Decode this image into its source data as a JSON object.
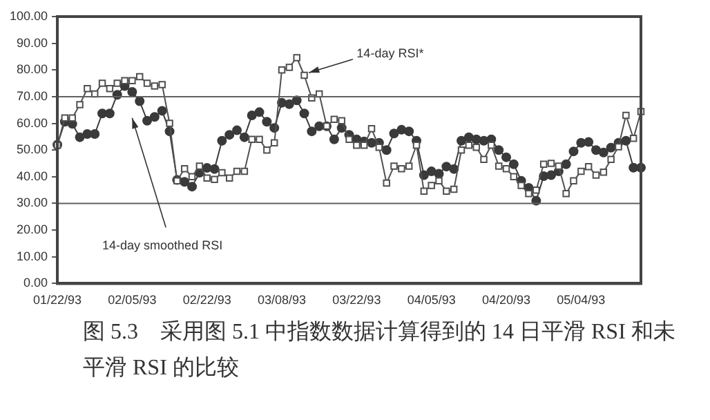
{
  "chart_data": {
    "type": "line",
    "categories": [
      "01/22/93",
      null,
      null,
      null,
      null,
      null,
      null,
      null,
      null,
      null,
      "02/05/93",
      null,
      null,
      null,
      null,
      null,
      null,
      null,
      null,
      null,
      "02/22/93",
      null,
      null,
      null,
      null,
      null,
      null,
      null,
      null,
      null,
      "03/08/93",
      null,
      null,
      null,
      null,
      null,
      null,
      null,
      null,
      null,
      "03/22/93",
      null,
      null,
      null,
      null,
      null,
      null,
      null,
      null,
      null,
      "04/05/93",
      null,
      null,
      null,
      null,
      null,
      null,
      null,
      null,
      null,
      "04/20/93",
      null,
      null,
      null,
      null,
      null,
      null,
      null,
      null,
      null,
      "05/04/93",
      null,
      null,
      null,
      null,
      null,
      null,
      null,
      null
    ],
    "series": [
      {
        "name": "14-day RSI*",
        "color": "#505050",
        "marker": "square",
        "values": [
          51.8,
          62,
          62,
          67,
          73,
          71,
          75,
          73,
          75,
          76,
          76,
          77.5,
          75,
          74,
          74.5,
          60,
          38.5,
          43,
          40,
          44,
          39.5,
          39,
          41.5,
          39.5,
          42,
          42,
          54,
          54,
          50,
          52.7,
          80,
          81,
          84.6,
          78,
          69.5,
          71,
          59,
          61.5,
          61,
          54,
          51.8,
          51.8,
          58,
          51,
          37.6,
          44,
          43,
          44,
          51.8,
          34.6,
          36.7,
          38.5,
          34.6,
          35.3,
          50,
          51.8,
          51,
          46.5,
          51.8,
          44,
          43,
          40,
          36.7,
          33.7,
          35,
          44.7,
          45,
          44,
          33.7,
          38.5,
          42,
          43.8,
          40.6,
          41.7,
          46.5,
          51.2,
          63,
          54.4,
          64.4
        ]
      },
      {
        "name": "14-day smoothed RSI",
        "color": "#3a3a3a",
        "marker": "circle",
        "values": [
          52,
          60.6,
          59.8,
          54.8,
          56,
          56,
          63.7,
          63.7,
          70.7,
          74,
          71.8,
          68.3,
          61,
          62.4,
          64.7,
          57,
          38.8,
          38.1,
          36.3,
          41.5,
          43.3,
          42.9,
          53.5,
          55.7,
          57.4,
          54.8,
          63,
          64.2,
          60.6,
          58.3,
          67.7,
          67.2,
          68.6,
          63.7,
          57,
          58.9,
          58.9,
          54,
          58.3,
          55.7,
          54,
          53.2,
          52.7,
          52.7,
          50,
          56.2,
          57.6,
          57,
          53.5,
          40.6,
          42,
          41.1,
          43.8,
          42.9,
          53.5,
          54.8,
          54,
          53.5,
          54,
          50,
          47.3,
          44.7,
          38.5,
          35.8,
          31,
          40.2,
          40.6,
          42,
          44.7,
          49.5,
          52.7,
          53,
          50,
          49.1,
          50.9,
          52.7,
          53.5,
          43.4,
          43.4
        ]
      }
    ],
    "ylim": [
      0,
      100
    ],
    "yticks": [
      {
        "value": 0,
        "label": "0.00"
      },
      {
        "value": 10,
        "label": "10.00"
      },
      {
        "value": 20,
        "label": "20.00"
      },
      {
        "value": 30,
        "label": "30.00"
      },
      {
        "value": 40,
        "label": "40.00"
      },
      {
        "value": 50,
        "label": "50.00"
      },
      {
        "value": 60,
        "label": "60.00"
      },
      {
        "value": 70,
        "label": "70.00"
      },
      {
        "value": 80,
        "label": "80.00"
      },
      {
        "value": 90,
        "label": "90.00"
      },
      {
        "value": 100,
        "label": "100.00"
      }
    ],
    "ref_lines": [
      {
        "axis": "y",
        "value": 70,
        "color": "#606060"
      },
      {
        "axis": "y",
        "value": 30,
        "color": "#606060"
      }
    ],
    "grid": false,
    "legend": false,
    "annotations": [
      "图 5.3　采用图 5.1 中指数数据计算得到的 14 日平滑 RSI 和未平滑 RSI 的比较"
    ]
  }
}
